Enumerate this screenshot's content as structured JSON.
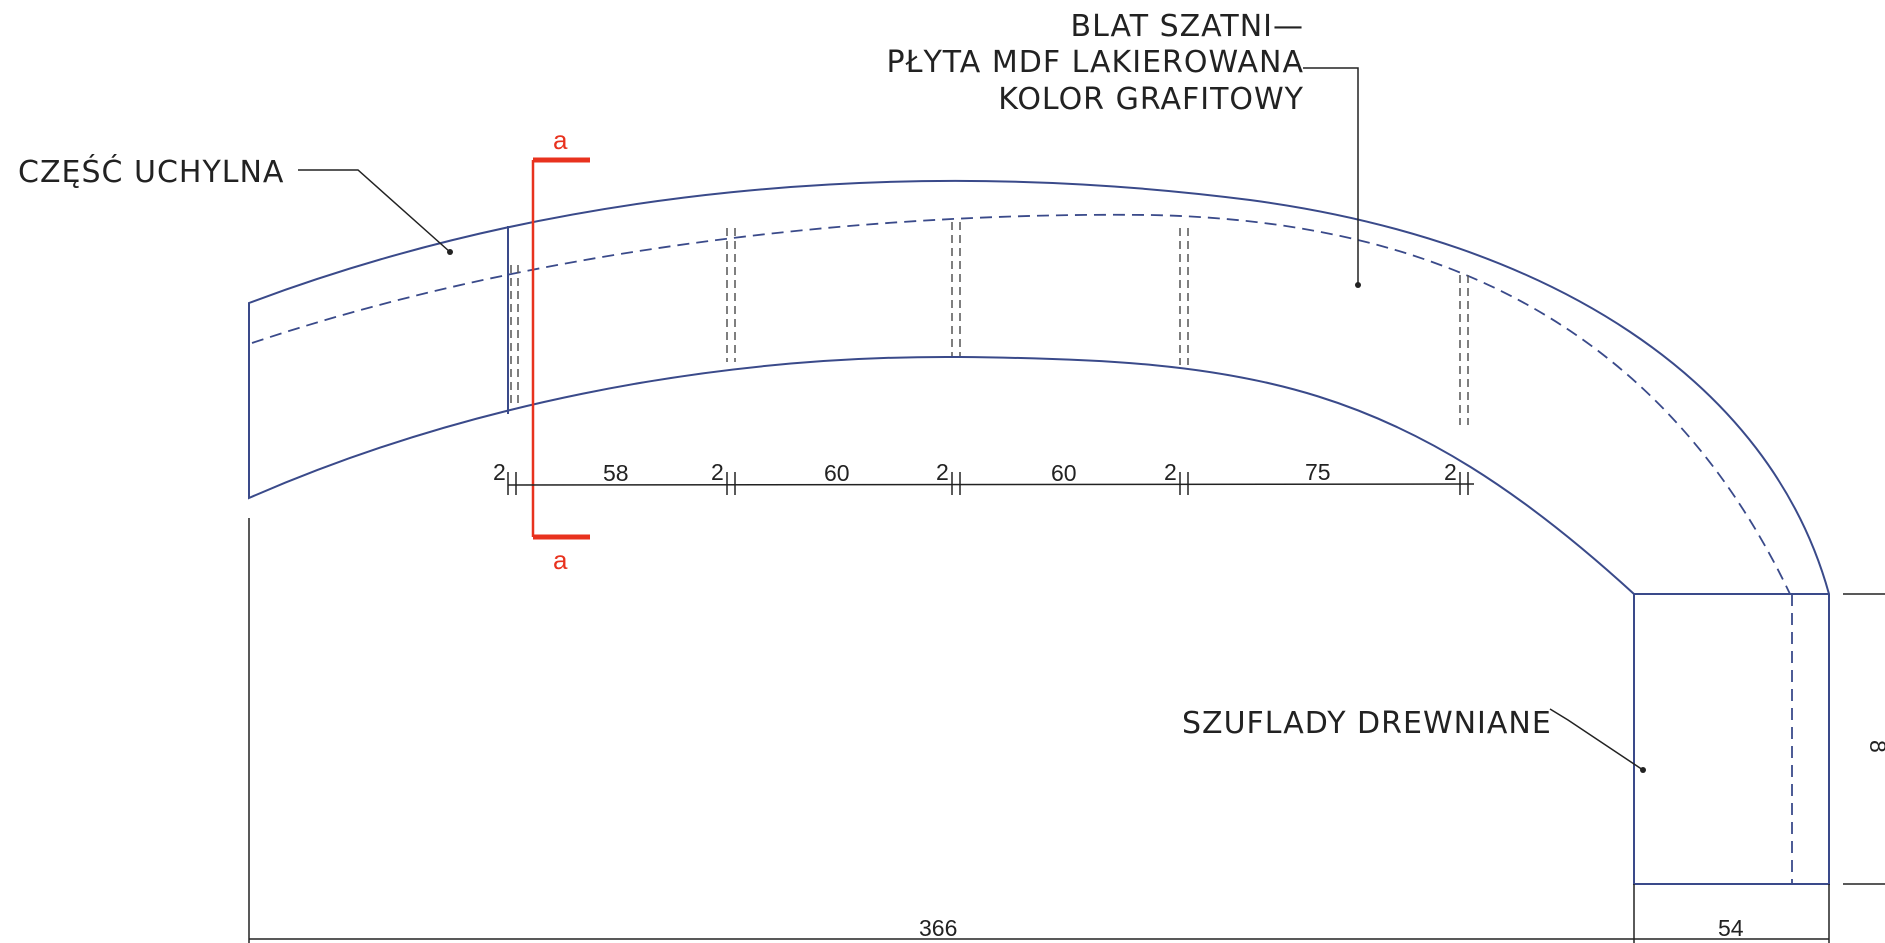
{
  "annotations": {
    "counter_top_line1": "BLAT SZATNI—",
    "counter_top_line2": "PŁYTA MDF LAKIEROWANA",
    "counter_top_line3": "KOLOR GRAFITOWY",
    "tilting_part": "CZĘŚĆ UCHYLNA",
    "drawers": "SZUFLADY DREWNIANE"
  },
  "section_marker": {
    "top": "a",
    "bottom": "a"
  },
  "dimensions": {
    "panel_gaps": [
      "2",
      "2",
      "2",
      "2",
      "2"
    ],
    "spans": [
      "58",
      "60",
      "60",
      "75"
    ],
    "overall_width": "366",
    "drawer_width": "54",
    "drawer_height_partial": "8"
  },
  "colors": {
    "outline": "#3a4a8a",
    "section_mark": "#e8321e",
    "text": "#222222",
    "fill": "#fafafa"
  }
}
